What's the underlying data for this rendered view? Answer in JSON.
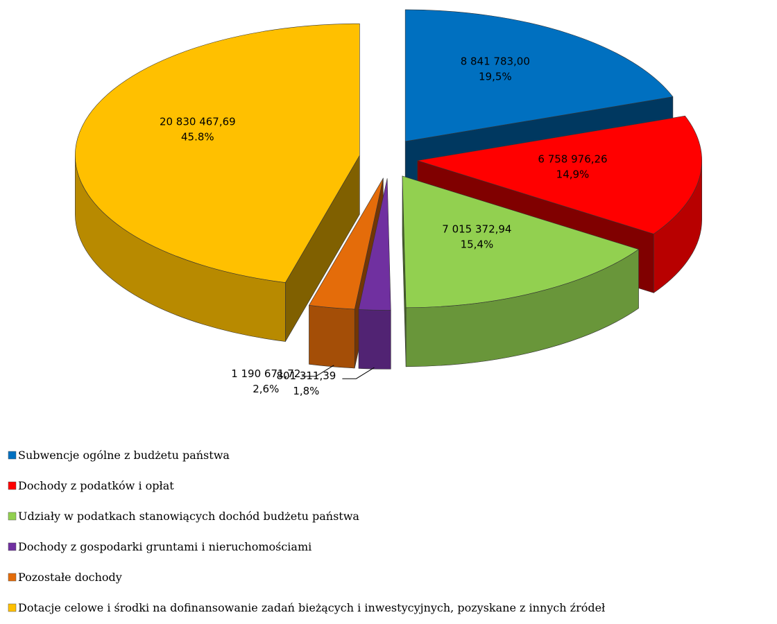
{
  "chart_data": {
    "type": "pie3d",
    "categories": [
      "Subwencje ogólne z budżetu państwa",
      "Dochody z podatków i opłat",
      "Udziały w podatkach stanowiących dochód budżetu państwa",
      "Dochody z gospodarki gruntami i nieruchomościami",
      "Pozostałe dochody",
      "Dotacje celowe i środki na dofinansowanie zadań bieżących i inwestycyjnych, pozyskane z innych źródeł"
    ],
    "values": [
      8841783.0,
      6758976.26,
      7015372.94,
      801311.39,
      1190671.72,
      20830467.69
    ],
    "value_labels": [
      "8 841 783,00",
      "6 758 976,26",
      "7 015 372,94",
      "801 311,39",
      "1 190 671,72",
      "20 830 467,69"
    ],
    "percentages": [
      19.5,
      14.9,
      15.4,
      1.8,
      2.6,
      45.8
    ],
    "percentage_labels": [
      "19,5%",
      "14,9%",
      "15,4%",
      "1,8%",
      "2,6%",
      "45.8%"
    ],
    "colors": [
      "#0070c0",
      "#ff0000",
      "#92d050",
      "#7030a0",
      "#e46c0a",
      "#ffc000"
    ],
    "legend": "bottom"
  }
}
